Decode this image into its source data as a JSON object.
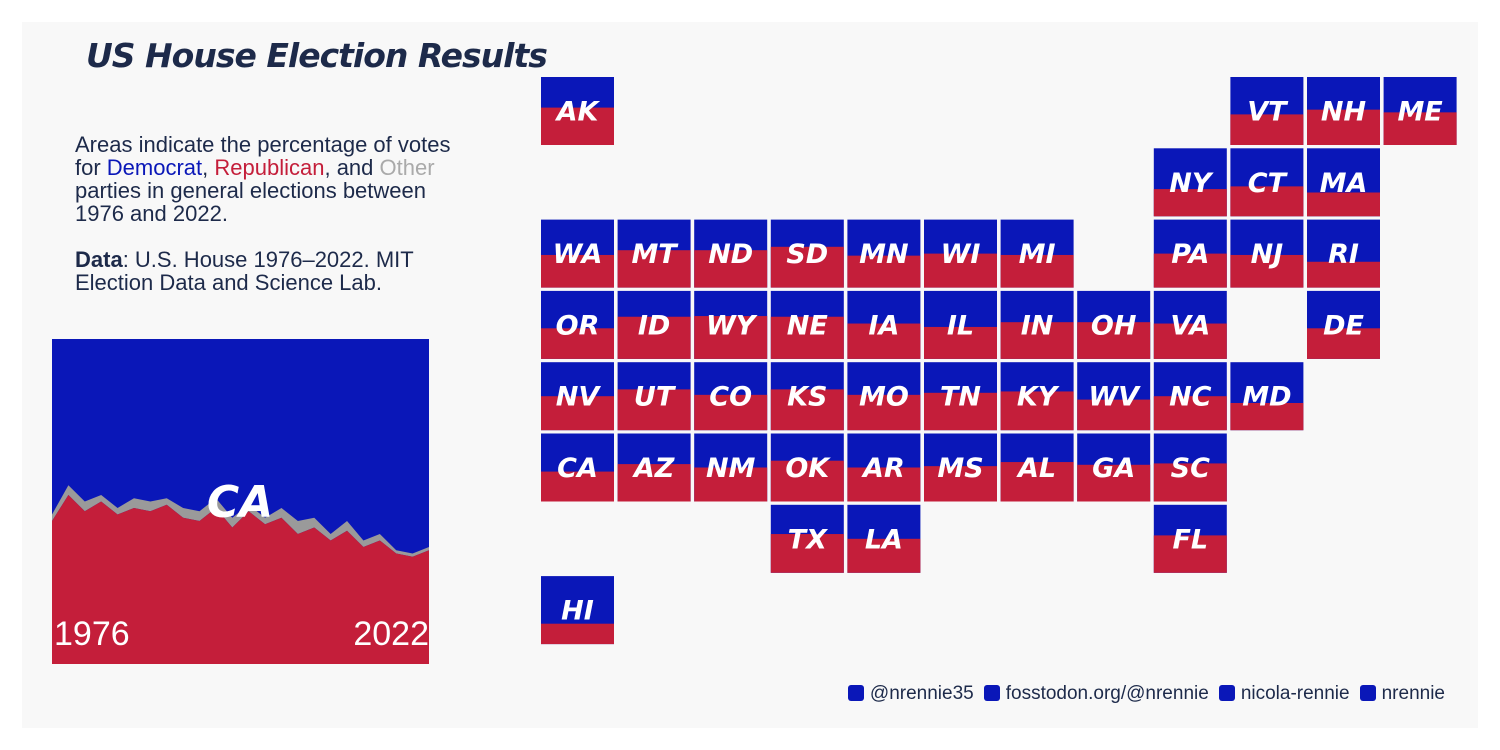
{
  "title": "US House Election Results",
  "description": [
    {
      "text": "Areas indicate the percentage of votes for "
    },
    {
      "text": "Democrat",
      "color": "#0a17b8"
    },
    {
      "text": ", "
    },
    {
      "text": "Republican",
      "color": "#c41e3a"
    },
    {
      "text": ", and "
    },
    {
      "text": "Other",
      "color": "#aaaaaa"
    },
    {
      "text": " parties in general elections between 1976 and 2022."
    }
  ],
  "source": {
    "label": "Data",
    "text": ": U.S. House 1976–2022. MIT Election Data and Science Lab."
  },
  "colors": {
    "democrat": "#0a17b8",
    "republican": "#c41e3a",
    "other": "#9a9a9a"
  },
  "chart_data": {
    "type": "area",
    "state": "CA",
    "x": [
      1976,
      1978,
      1980,
      1982,
      1984,
      1986,
      1988,
      1990,
      1992,
      1994,
      1996,
      1998,
      2000,
      2002,
      2004,
      2006,
      2008,
      2010,
      2012,
      2014,
      2016,
      2018,
      2020,
      2022
    ],
    "republican": [
      44,
      52,
      47,
      50,
      46,
      48,
      47,
      49,
      45,
      44,
      48,
      42,
      47,
      43,
      45,
      40,
      42,
      38,
      41,
      36,
      38,
      34,
      33,
      35
    ],
    "other": [
      2,
      3,
      3,
      2,
      2,
      3,
      3,
      2,
      3,
      3,
      3,
      3,
      2,
      2,
      3,
      4,
      3,
      2,
      3,
      2,
      2,
      1,
      1,
      1
    ],
    "ylim": [
      0,
      100
    ]
  },
  "states": [
    {
      "label": "AK",
      "republican": 55
    },
    {
      "label": "VT",
      "republican": 45
    },
    {
      "label": "NH",
      "republican": 52
    },
    {
      "label": "ME",
      "republican": 48
    },
    {
      "label": "NY",
      "republican": 40
    },
    {
      "label": "CT",
      "republican": 44
    },
    {
      "label": "MA",
      "republican": 35
    },
    {
      "label": "WA",
      "republican": 48
    },
    {
      "label": "MT",
      "republican": 55
    },
    {
      "label": "ND",
      "republican": 55
    },
    {
      "label": "SD",
      "republican": 60
    },
    {
      "label": "MN",
      "republican": 47
    },
    {
      "label": "WI",
      "republican": 50
    },
    {
      "label": "MI",
      "republican": 48
    },
    {
      "label": "PA",
      "republican": 50
    },
    {
      "label": "NJ",
      "republican": 48
    },
    {
      "label": "RI",
      "republican": 38
    },
    {
      "label": "OR",
      "republican": 45
    },
    {
      "label": "ID",
      "republican": 62
    },
    {
      "label": "WY",
      "republican": 63
    },
    {
      "label": "NE",
      "republican": 62
    },
    {
      "label": "IA",
      "republican": 52
    },
    {
      "label": "IL",
      "republican": 47
    },
    {
      "label": "IN",
      "republican": 54
    },
    {
      "label": "OH",
      "republican": 54
    },
    {
      "label": "VA",
      "republican": 52
    },
    {
      "label": "DE",
      "republican": 45
    },
    {
      "label": "NV",
      "republican": 50
    },
    {
      "label": "UT",
      "republican": 60
    },
    {
      "label": "CO",
      "republican": 52
    },
    {
      "label": "KS",
      "republican": 60
    },
    {
      "label": "MO",
      "republican": 52
    },
    {
      "label": "TN",
      "republican": 55
    },
    {
      "label": "KY",
      "republican": 57
    },
    {
      "label": "WV",
      "republican": 45
    },
    {
      "label": "NC",
      "republican": 50
    },
    {
      "label": "MD",
      "republican": 40
    },
    {
      "label": "CA",
      "republican": 44
    },
    {
      "label": "AZ",
      "republican": 55
    },
    {
      "label": "NM",
      "republican": 50
    },
    {
      "label": "OK",
      "republican": 60
    },
    {
      "label": "AR",
      "republican": 50
    },
    {
      "label": "MS",
      "republican": 52
    },
    {
      "label": "AL",
      "republican": 58
    },
    {
      "label": "GA",
      "republican": 54
    },
    {
      "label": "SC",
      "republican": 56
    },
    {
      "label": "TX",
      "republican": 57
    },
    {
      "label": "LA",
      "republican": 50
    },
    {
      "label": "FL",
      "republican": 55
    },
    {
      "label": "HI",
      "republican": 30
    }
  ],
  "footer": [
    "@nrennie35",
    "fosstodon.org/@nrennie",
    "nicola-rennie",
    "nrennie"
  ]
}
